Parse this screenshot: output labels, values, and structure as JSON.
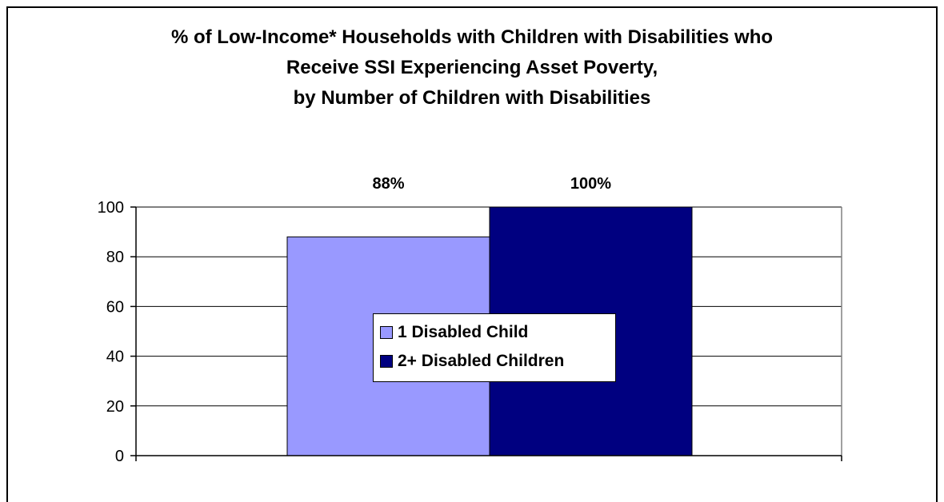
{
  "title_lines": [
    "% of Low-Income* Households with Children with Disabilities who",
    "Receive SSI Experiencing Asset Poverty,",
    "by Number of Children with Disabilities"
  ],
  "chart_data": {
    "type": "bar",
    "title": "% of Low-Income* Households with Children with Disabilities who Receive SSI Experiencing Asset Poverty, by Number of Children with Disabilities",
    "xlabel": "",
    "ylabel": "",
    "ylim": [
      0,
      100
    ],
    "yticks": [
      0,
      20,
      40,
      60,
      80,
      100
    ],
    "grid": true,
    "legend_position": "center",
    "series": [
      {
        "name": "1 Disabled Child",
        "values": [
          88
        ],
        "data_label": "88%",
        "color": "#9999ff"
      },
      {
        "name": "2+ Disabled Children",
        "values": [
          100
        ],
        "data_label": "100%",
        "color": "#000080"
      }
    ]
  }
}
